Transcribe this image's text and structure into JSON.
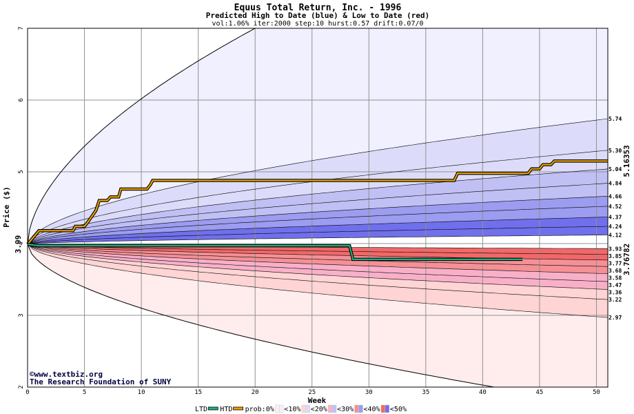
{
  "chart_data": {
    "type": "area",
    "title": "Equus Total Return, Inc. - 1996",
    "subtitle": "Predicted High to Date (blue) &  Low to Date (red)",
    "params": "vol:1.06% iter:2000 step:10 hurst:0.57 drift:0.07/0",
    "xlabel": "Week",
    "ylabel": "Price ($)",
    "xlim": [
      0,
      51
    ],
    "ylim": [
      2,
      7
    ],
    "x_ticks": [
      0,
      5,
      10,
      15,
      20,
      25,
      30,
      35,
      40,
      45,
      50
    ],
    "y_ticks": [
      2,
      3,
      4,
      5,
      6,
      7
    ],
    "grid": true,
    "start_price": 3.99,
    "start_label": "3.99",
    "high_end_labels": [
      "5.74",
      "5.30",
      "5.04",
      "4.84",
      "4.66",
      "4.52",
      "4.37",
      "4.24",
      "4.12"
    ],
    "low_end_labels": [
      "3.93",
      "3.85",
      "3.77",
      "3.68",
      "3.58",
      "3.47",
      "3.36",
      "3.22",
      "2.97"
    ],
    "outer_envelope": {
      "high_end": 7.0,
      "high_reach_week": 20,
      "low_end": 2.0,
      "low_reach_week": 41
    },
    "htd_series": {
      "name": "HTD",
      "color": "#e8a000",
      "end_label": "5.16353",
      "points": [
        [
          0,
          3.99
        ],
        [
          1,
          4.18
        ],
        [
          4,
          4.18
        ],
        [
          4.2,
          4.24
        ],
        [
          5,
          4.24
        ],
        [
          5.3,
          4.3
        ],
        [
          6,
          4.46
        ],
        [
          6.3,
          4.6
        ],
        [
          7,
          4.6
        ],
        [
          7.3,
          4.65
        ],
        [
          8,
          4.65
        ],
        [
          8.2,
          4.76
        ],
        [
          10.5,
          4.76
        ],
        [
          10.8,
          4.82
        ],
        [
          11,
          4.88
        ],
        [
          37.5,
          4.88
        ],
        [
          37.8,
          4.98
        ],
        [
          44,
          4.98
        ],
        [
          44.3,
          5.04
        ],
        [
          45,
          5.04
        ],
        [
          45.3,
          5.1
        ],
        [
          46,
          5.1
        ],
        [
          46.3,
          5.15
        ],
        [
          51,
          5.15
        ]
      ]
    },
    "ltd_series": {
      "name": "LTD",
      "color": "#20b080",
      "end_label": "3.76782",
      "points": [
        [
          0,
          3.99
        ],
        [
          1,
          3.97
        ],
        [
          28.3,
          3.97
        ],
        [
          28.6,
          3.78
        ],
        [
          43.5,
          3.78
        ]
      ]
    },
    "legend": {
      "items": [
        "LTD",
        "HTD",
        "prob:0%",
        "<10%",
        "<20%",
        "<30%",
        "<40%",
        "<50%"
      ],
      "prob_colors": [
        "#ffffff",
        "#ffecec",
        "#ffd4d4",
        "#f8b0c8",
        "#f49096",
        "#f26868"
      ],
      "prob_colors_blue": [
        "#ffffff",
        "#f0f0ff",
        "#dcdcfa",
        "#c0c0f4",
        "#9c9cf0",
        "#7070ec"
      ]
    },
    "credits": [
      "©www.textbiz.org",
      "The Research Foundation of SUNY"
    ]
  }
}
